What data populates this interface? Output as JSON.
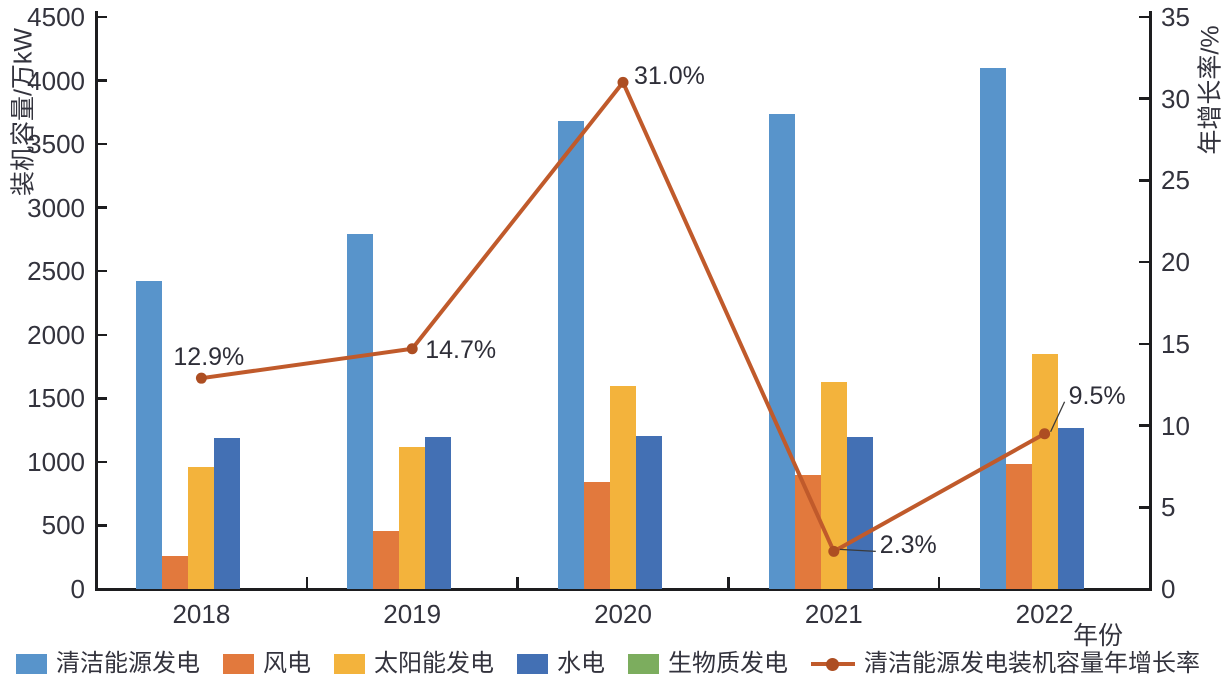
{
  "chart_data": {
    "type": "bar",
    "subtype": "grouped-bars-with-line",
    "categories": [
      "2018",
      "2019",
      "2020",
      "2021",
      "2022"
    ],
    "series": [
      {
        "name": "清洁能源发电",
        "key": "clean-energy",
        "color": "#5894CB",
        "values": [
          2420,
          2790,
          3680,
          3740,
          4100
        ]
      },
      {
        "name": "风电",
        "key": "wind",
        "color": "#E2793D",
        "values": [
          260,
          460,
          845,
          900,
          980
        ]
      },
      {
        "name": "太阳能发电",
        "key": "solar",
        "color": "#F3B33C",
        "values": [
          960,
          1120,
          1600,
          1630,
          1850
        ]
      },
      {
        "name": "水电",
        "key": "hydro",
        "color": "#4370B4",
        "values": [
          1185,
          1195,
          1200,
          1195,
          1270
        ]
      },
      {
        "name": "生物质发电",
        "key": "biomass",
        "color": "#7CAD5E",
        "values": [
          0,
          0,
          0,
          0,
          0
        ]
      }
    ],
    "line_series": {
      "name": "清洁能源发电装机容量年增长率",
      "key": "growth-rate",
      "color": "#C05A2B",
      "marker_color": "#AD4E22",
      "values": [
        12.9,
        14.7,
        31.0,
        2.3,
        9.5
      ],
      "labels": [
        "12.9%",
        "14.7%",
        "31.0%",
        "2.3%",
        "9.5%"
      ]
    },
    "ylabel_left": "装机容量/万kW",
    "ylabel_right": "年增长率/%",
    "xlabel": "年份",
    "y_left": {
      "min": 0,
      "max": 4500,
      "step": 500
    },
    "y_right": {
      "min": 0,
      "max": 35,
      "step": 5
    },
    "grid": false,
    "legend_position": "bottom"
  },
  "colors": {
    "axis": "#1D1D1F",
    "tick_text": "#33333D",
    "annotation_text": "#2E2E38",
    "leader_line": "#3A3A3A"
  }
}
